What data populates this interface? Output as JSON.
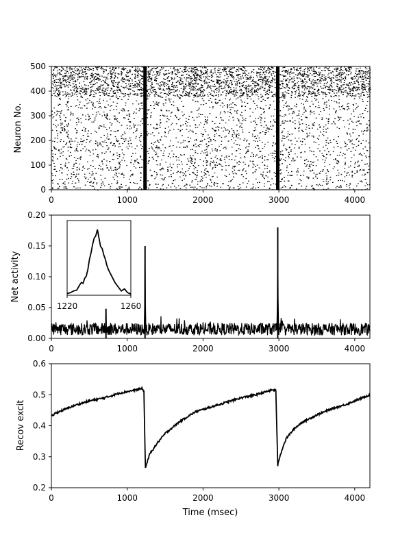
{
  "chart_data": [
    {
      "type": "scatter",
      "panel": "raster",
      "xlabel": "",
      "ylabel": "Neuron No.",
      "xlim": [
        0,
        4200
      ],
      "ylim": [
        0,
        500
      ],
      "xticks": [
        0,
        1000,
        2000,
        3000,
        4000
      ],
      "yticks": [
        0,
        100,
        200,
        300,
        400,
        500
      ],
      "description_marks": {
        "burst_times": [
          1235,
          2985
        ],
        "dense_band_neurons": [
          380,
          500
        ]
      },
      "color": "#000000"
    },
    {
      "type": "line",
      "panel": "activity",
      "xlabel": "",
      "ylabel": "Net activity",
      "xlim": [
        0,
        4200
      ],
      "ylim": [
        0,
        0.2
      ],
      "xticks": [
        0,
        1000,
        2000,
        3000,
        4000
      ],
      "yticks": [
        "0.00",
        "0.05",
        "0.10",
        "0.15",
        "0.20"
      ],
      "baseline_level": 0.015,
      "peaks": [
        {
          "x": 720,
          "y": 0.048
        },
        {
          "x": 1235,
          "y": 0.15
        },
        {
          "x": 2985,
          "y": 0.18
        }
      ],
      "inset": {
        "xlim": [
          1220,
          1260
        ],
        "ylim": [
          0,
          0.16
        ],
        "xticks": [
          1220,
          1260
        ],
        "x": [
          1220,
          1222,
          1224,
          1226,
          1228,
          1229,
          1230,
          1231,
          1232,
          1233,
          1234,
          1235,
          1236,
          1237,
          1238,
          1239,
          1240,
          1241,
          1242,
          1243,
          1244,
          1245,
          1246,
          1248,
          1250,
          1252,
          1254,
          1256,
          1258,
          1260
        ],
        "y": [
          0.004,
          0.006,
          0.01,
          0.012,
          0.025,
          0.03,
          0.028,
          0.04,
          0.045,
          0.06,
          0.085,
          0.1,
          0.12,
          0.135,
          0.14,
          0.155,
          0.135,
          0.115,
          0.11,
          0.095,
          0.085,
          0.07,
          0.06,
          0.045,
          0.03,
          0.02,
          0.01,
          0.015,
          0.006,
          0.003
        ]
      },
      "color": "#000000"
    },
    {
      "type": "line",
      "panel": "recovery",
      "xlabel": "Time (msec)",
      "ylabel": "Recov excit",
      "xlim": [
        0,
        4200
      ],
      "ylim": [
        0.2,
        0.6
      ],
      "xticks": [
        0,
        1000,
        2000,
        3000,
        4000
      ],
      "yticks": [
        "0.2",
        "0.3",
        "0.4",
        "0.5",
        "0.6"
      ],
      "x": [
        0,
        50,
        150,
        300,
        500,
        700,
        900,
        1100,
        1200,
        1220,
        1240,
        1300,
        1400,
        1500,
        1700,
        1900,
        2100,
        2300,
        2500,
        2700,
        2900,
        2960,
        2985,
        3000,
        3050,
        3100,
        3200,
        3300,
        3500,
        3700,
        3900,
        4100,
        4200
      ],
      "y": [
        0.43,
        0.44,
        0.45,
        0.465,
        0.48,
        0.49,
        0.505,
        0.515,
        0.52,
        0.51,
        0.265,
        0.31,
        0.345,
        0.375,
        0.415,
        0.445,
        0.46,
        0.475,
        0.49,
        0.5,
        0.515,
        0.515,
        0.27,
        0.29,
        0.33,
        0.36,
        0.39,
        0.41,
        0.435,
        0.455,
        0.47,
        0.49,
        0.5
      ],
      "color": "#000000"
    }
  ]
}
